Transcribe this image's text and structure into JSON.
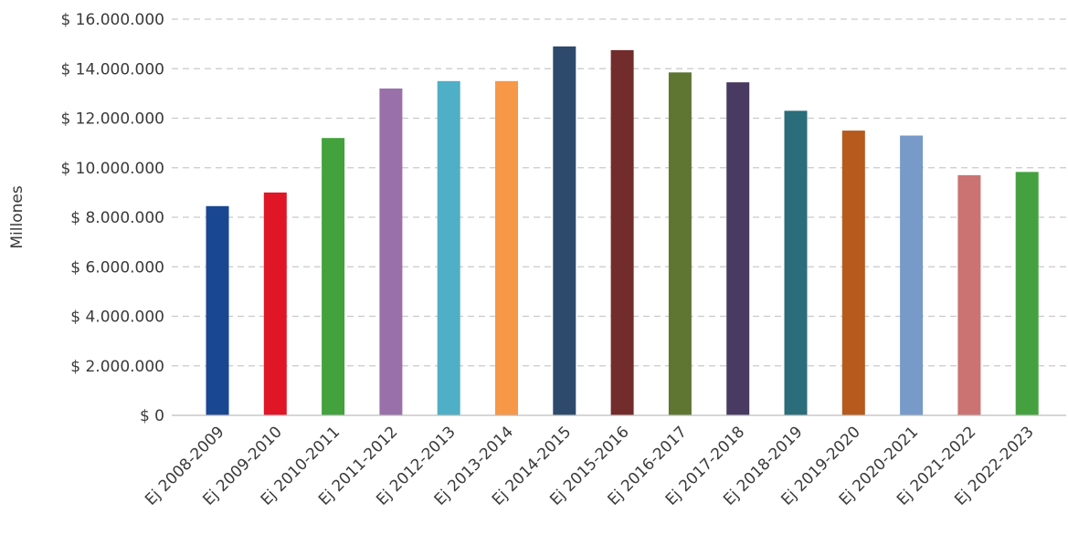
{
  "chart_data": {
    "type": "bar",
    "title": "",
    "xlabel": "",
    "ylabel": "Millones",
    "ylim": [
      0,
      16000000
    ],
    "y_ticks": [
      0,
      2000000,
      4000000,
      6000000,
      8000000,
      10000000,
      12000000,
      14000000,
      16000000
    ],
    "y_tick_labels": [
      "$ 0",
      "$ 2.000.000",
      "$ 4.000.000",
      "$ 6.000.000",
      "$ 8.000.000",
      "$ 10.000.000",
      "$ 12.000.000",
      "$ 14.000.000",
      "$ 16.000.000"
    ],
    "grid": true,
    "legend": "none",
    "categories": [
      "Ej 2008-2009",
      "Ej 2009-2010",
      "Ej 2010-2011",
      "Ej 2011-2012",
      "Ej 2012-2013",
      "Ej 2013-2014",
      "Ej 2014-2015",
      "Ej 2015-2016",
      "Ej 2016-2017",
      "Ej 2017-2018",
      "Ej 2018-2019",
      "Ej 2019-2020",
      "Ej 2020-2021",
      "Ej 2021-2022",
      "Ej 2022-2023"
    ],
    "values": [
      8450000,
      9000000,
      11200000,
      13200000,
      13500000,
      13500000,
      14900000,
      14750000,
      13850000,
      13450000,
      12300000,
      11500000,
      11300000,
      9700000,
      9830000
    ],
    "colors": [
      "#1a4791",
      "#e01626",
      "#43a13e",
      "#9a70ab",
      "#4fafc6",
      "#f79748",
      "#2d4a6d",
      "#722c2c",
      "#5f7633",
      "#493a62",
      "#2b6d7a",
      "#b65a1d",
      "#779ac9",
      "#cb7373",
      "#45a13f"
    ]
  }
}
